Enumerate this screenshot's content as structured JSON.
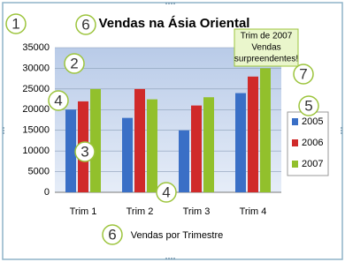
{
  "chart_data": {
    "type": "bar",
    "title": "Vendas na Ásia Oriental",
    "x_label": "Vendas por Trimestre",
    "categories": [
      "Trim 1",
      "Trim 2",
      "Trim 3",
      "Trim 4"
    ],
    "series": [
      {
        "name": "2005",
        "color": "#3a6fc6",
        "values": [
          20000,
          18000,
          15000,
          24000
        ]
      },
      {
        "name": "2006",
        "color": "#d02a2a",
        "values": [
          22000,
          25000,
          21000,
          28000
        ]
      },
      {
        "name": "2007",
        "color": "#92c02c",
        "values": [
          25000,
          22500,
          23000,
          30000
        ]
      }
    ],
    "ylim": [
      0,
      35000
    ],
    "yticks": [
      0,
      5000,
      10000,
      15000,
      20000,
      25000,
      30000,
      35000
    ],
    "grid": true,
    "legend": "right",
    "annotation": [
      "Trim de 2007",
      "Vendas",
      "surpreendentes!"
    ],
    "callouts": [
      "1",
      "6",
      "2",
      "4",
      "3",
      "4",
      "7",
      "5",
      "6"
    ]
  }
}
